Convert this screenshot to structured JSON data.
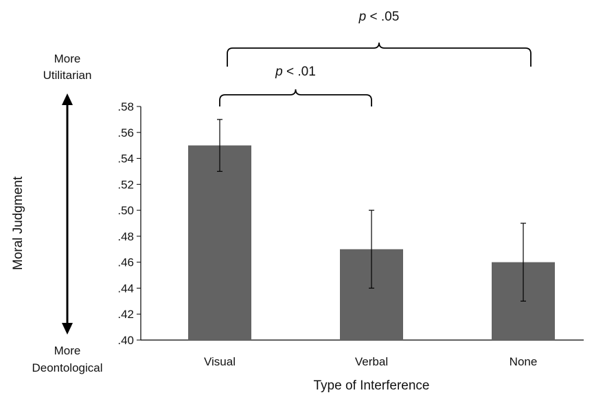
{
  "chart_data": {
    "type": "bar",
    "categories": [
      "Visual",
      "Verbal",
      "None"
    ],
    "values": [
      0.55,
      0.47,
      0.46
    ],
    "error_bars": [
      {
        "low": 0.53,
        "high": 0.57
      },
      {
        "low": 0.44,
        "high": 0.5
      },
      {
        "low": 0.43,
        "high": 0.49
      }
    ],
    "ylim": [
      0.4,
      0.58
    ],
    "yticks": [
      ".40",
      ".42",
      ".44",
      ".46",
      ".48",
      ".50",
      ".52",
      ".54",
      ".56",
      ".58"
    ],
    "xlabel": "Type of Interference",
    "ylabel": "Moral Judgment",
    "y_top_label": [
      "More",
      "Utilitarian"
    ],
    "y_bottom_label": [
      "More",
      "Deontological"
    ],
    "bar_color": "#636363",
    "grid": false,
    "significance": [
      {
        "from": "Visual",
        "to": "Verbal",
        "label": "< .01",
        "italic_prefix": "p"
      },
      {
        "from": "Visual",
        "to": "None",
        "label": "< .05",
        "italic_prefix": "p"
      }
    ]
  }
}
